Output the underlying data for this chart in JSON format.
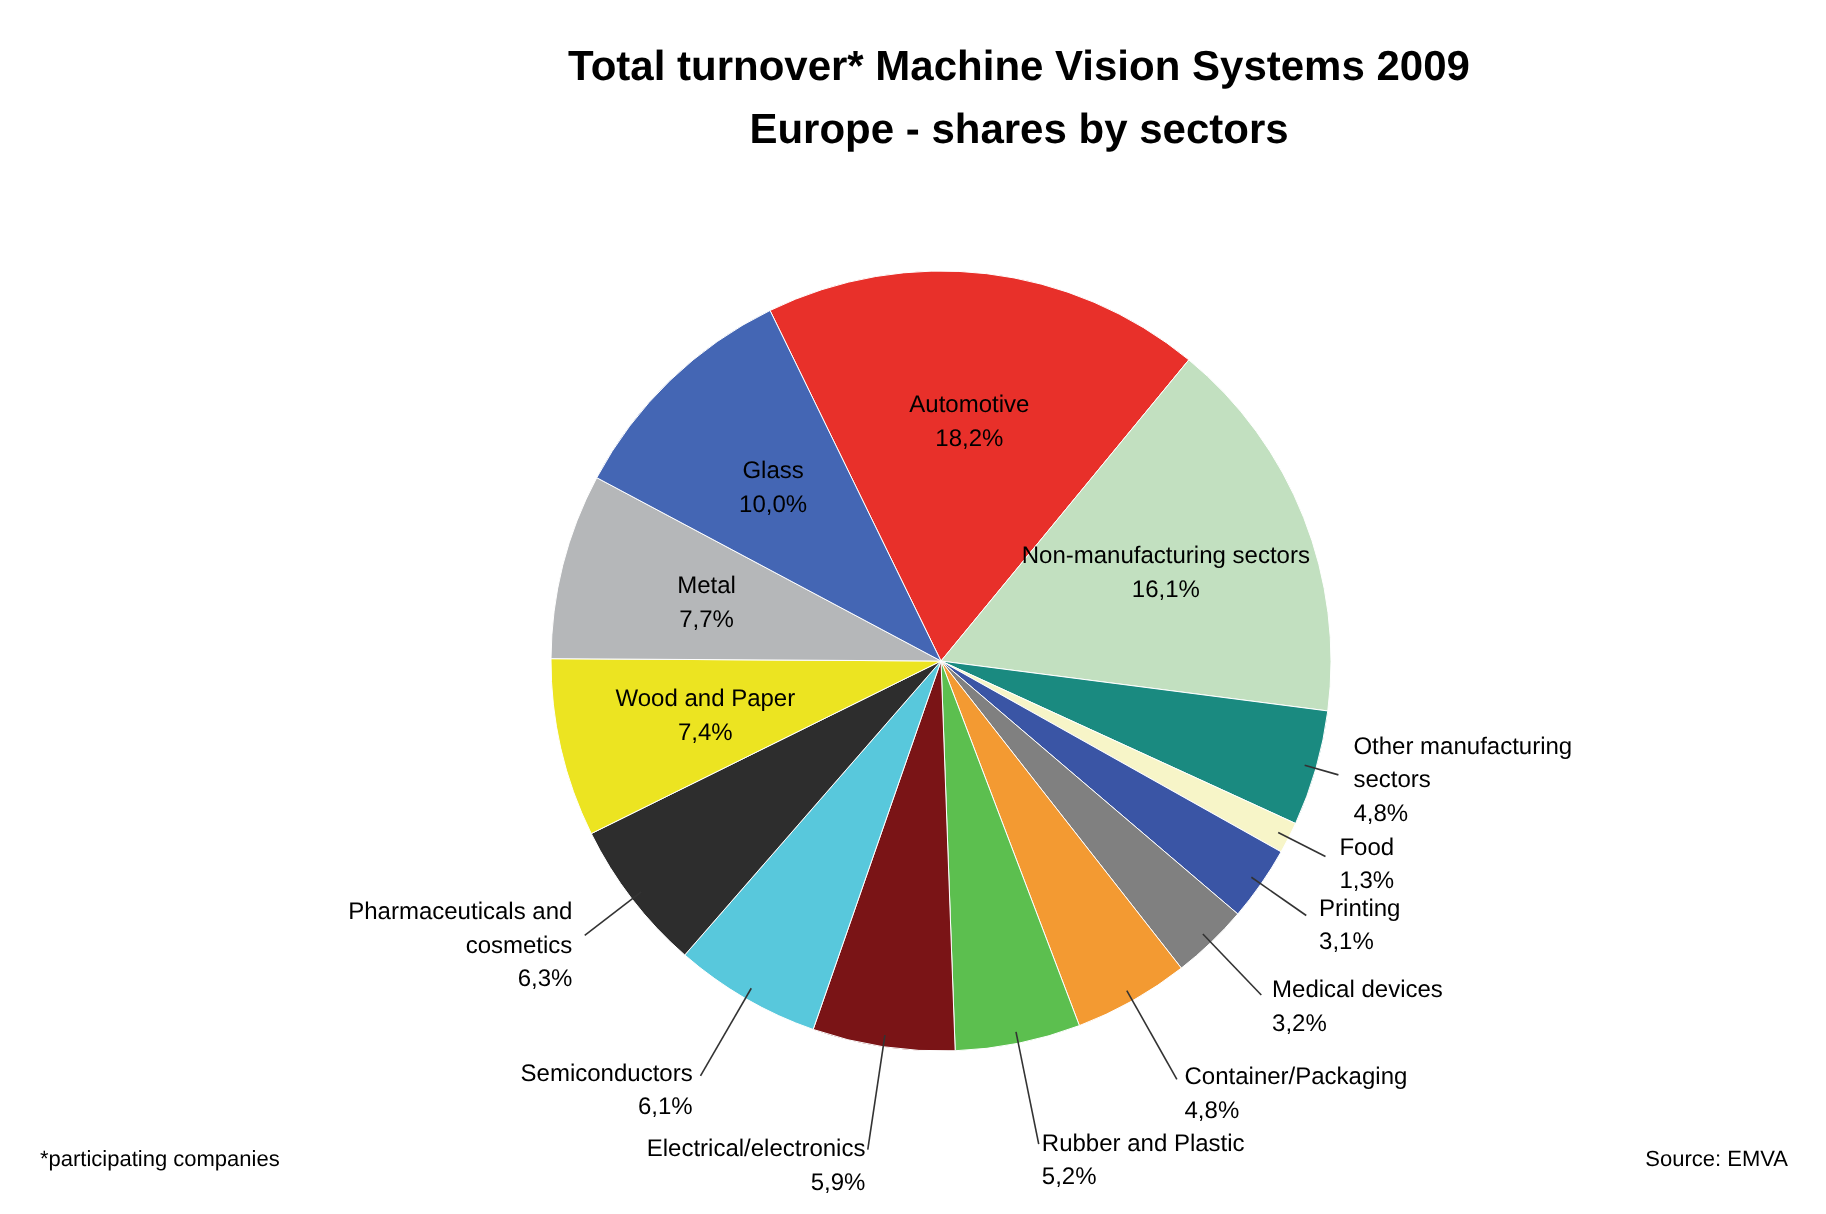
{
  "chart_data": {
    "type": "pie",
    "title": "Total turnover* Machine Vision Systems 2009",
    "subtitle": "Europe - shares by sectors",
    "categories": [
      "Automotive",
      "Non-manufacturing sectors",
      "Other manufacturing sectors",
      "Food",
      "Printing",
      "Medical devices",
      "Container/Packaging",
      "Rubber and Plastic",
      "Electrical/electronics",
      "Semiconductors",
      "Pharmaceuticals and cosmetics",
      "Wood and Paper",
      "Metal",
      "Glass"
    ],
    "values": [
      18.2,
      16.1,
      4.8,
      1.3,
      3.1,
      3.2,
      4.8,
      5.2,
      5.9,
      6.1,
      6.3,
      7.4,
      7.7,
      10.0
    ],
    "value_labels": [
      "18,2%",
      "16,1%",
      "4,8%",
      "1,3%",
      "3,1%",
      "3,2%",
      "4,8%",
      "5,2%",
      "5,9%",
      "6,1%",
      "6,3%",
      "7,4%",
      "7,7%",
      "10,0%"
    ],
    "colors": [
      "#e8302a",
      "#c2e0c0",
      "#1a8a80",
      "#f7f5c8",
      "#3a55a5",
      "#808080",
      "#f39a32",
      "#5cbf4f",
      "#7a1416",
      "#58c8dc",
      "#2d2d2d",
      "#ece421",
      "#b5b7b9",
      "#4466b4"
    ],
    "annotations": [
      "*participating companies",
      "Source: EMVA"
    ]
  }
}
